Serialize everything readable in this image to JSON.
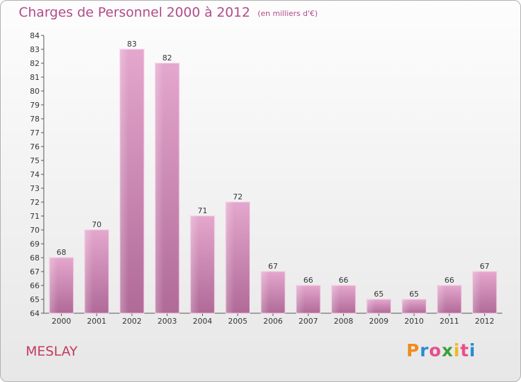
{
  "header": {
    "title": "Charges de Personnel 2000 à 2012",
    "subtitle": "(en milliers d'€)"
  },
  "footer": {
    "commune": "MESLAY",
    "logo": [
      "P",
      "r",
      "o",
      "x",
      "i",
      "t",
      "i"
    ]
  },
  "colors": {
    "title": "#b24a8a",
    "bar": "#d990bd",
    "commune": "#c23a5e",
    "logo": [
      "#f08a1c",
      "#2a8bd1",
      "#e94e8a",
      "#3aa23a",
      "#f0b81c",
      "#e94e8a",
      "#2a8bd1"
    ]
  },
  "chart_data": {
    "type": "bar",
    "categories": [
      "2000",
      "2001",
      "2002",
      "2003",
      "2004",
      "2005",
      "2006",
      "2007",
      "2008",
      "2009",
      "2010",
      "2011",
      "2012"
    ],
    "values": [
      68,
      70,
      83,
      82,
      71,
      72,
      67,
      66,
      66,
      65,
      65,
      66,
      67
    ],
    "ylim": [
      64,
      84
    ],
    "yticks": [
      64,
      65,
      66,
      67,
      68,
      69,
      70,
      71,
      72,
      73,
      74,
      75,
      76,
      77,
      78,
      79,
      80,
      81,
      82,
      83,
      84
    ],
    "grid": false
  }
}
